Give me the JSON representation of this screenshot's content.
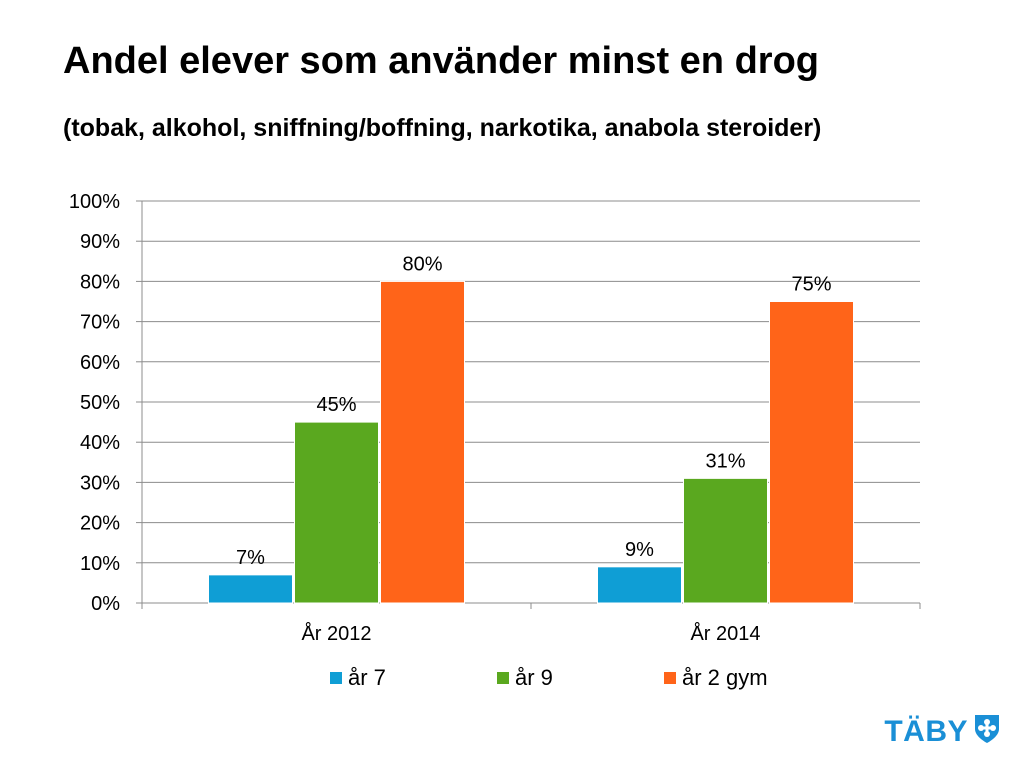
{
  "title": "Andel elever som använder minst en drog",
  "subtitle": "(tobak, alkohol, sniffning/boffning, narkotika, anabola steroider)",
  "logo": {
    "text": "TÄBY",
    "icon": "taby-shield-icon",
    "color": "#1a8fd6"
  },
  "chart_data": {
    "type": "bar",
    "categories": [
      "År 2012",
      "År 2014"
    ],
    "series": [
      {
        "name": "år 7",
        "values": [
          7,
          9
        ],
        "labels": [
          "7%",
          "9%"
        ],
        "color": "#0f9ed5"
      },
      {
        "name": "år 9",
        "values": [
          45,
          31
        ],
        "labels": [
          "45%",
          "31%"
        ],
        "color": "#5aa81f"
      },
      {
        "name": "år 2 gym",
        "values": [
          80,
          75
        ],
        "labels": [
          "80%",
          "75%"
        ],
        "color": "#ff6419"
      }
    ],
    "yticks": [
      "0%",
      "10%",
      "20%",
      "30%",
      "40%",
      "50%",
      "60%",
      "70%",
      "80%",
      "90%",
      "100%"
    ],
    "ylim": [
      0,
      100
    ],
    "grid": true,
    "legend_position": "bottom"
  }
}
